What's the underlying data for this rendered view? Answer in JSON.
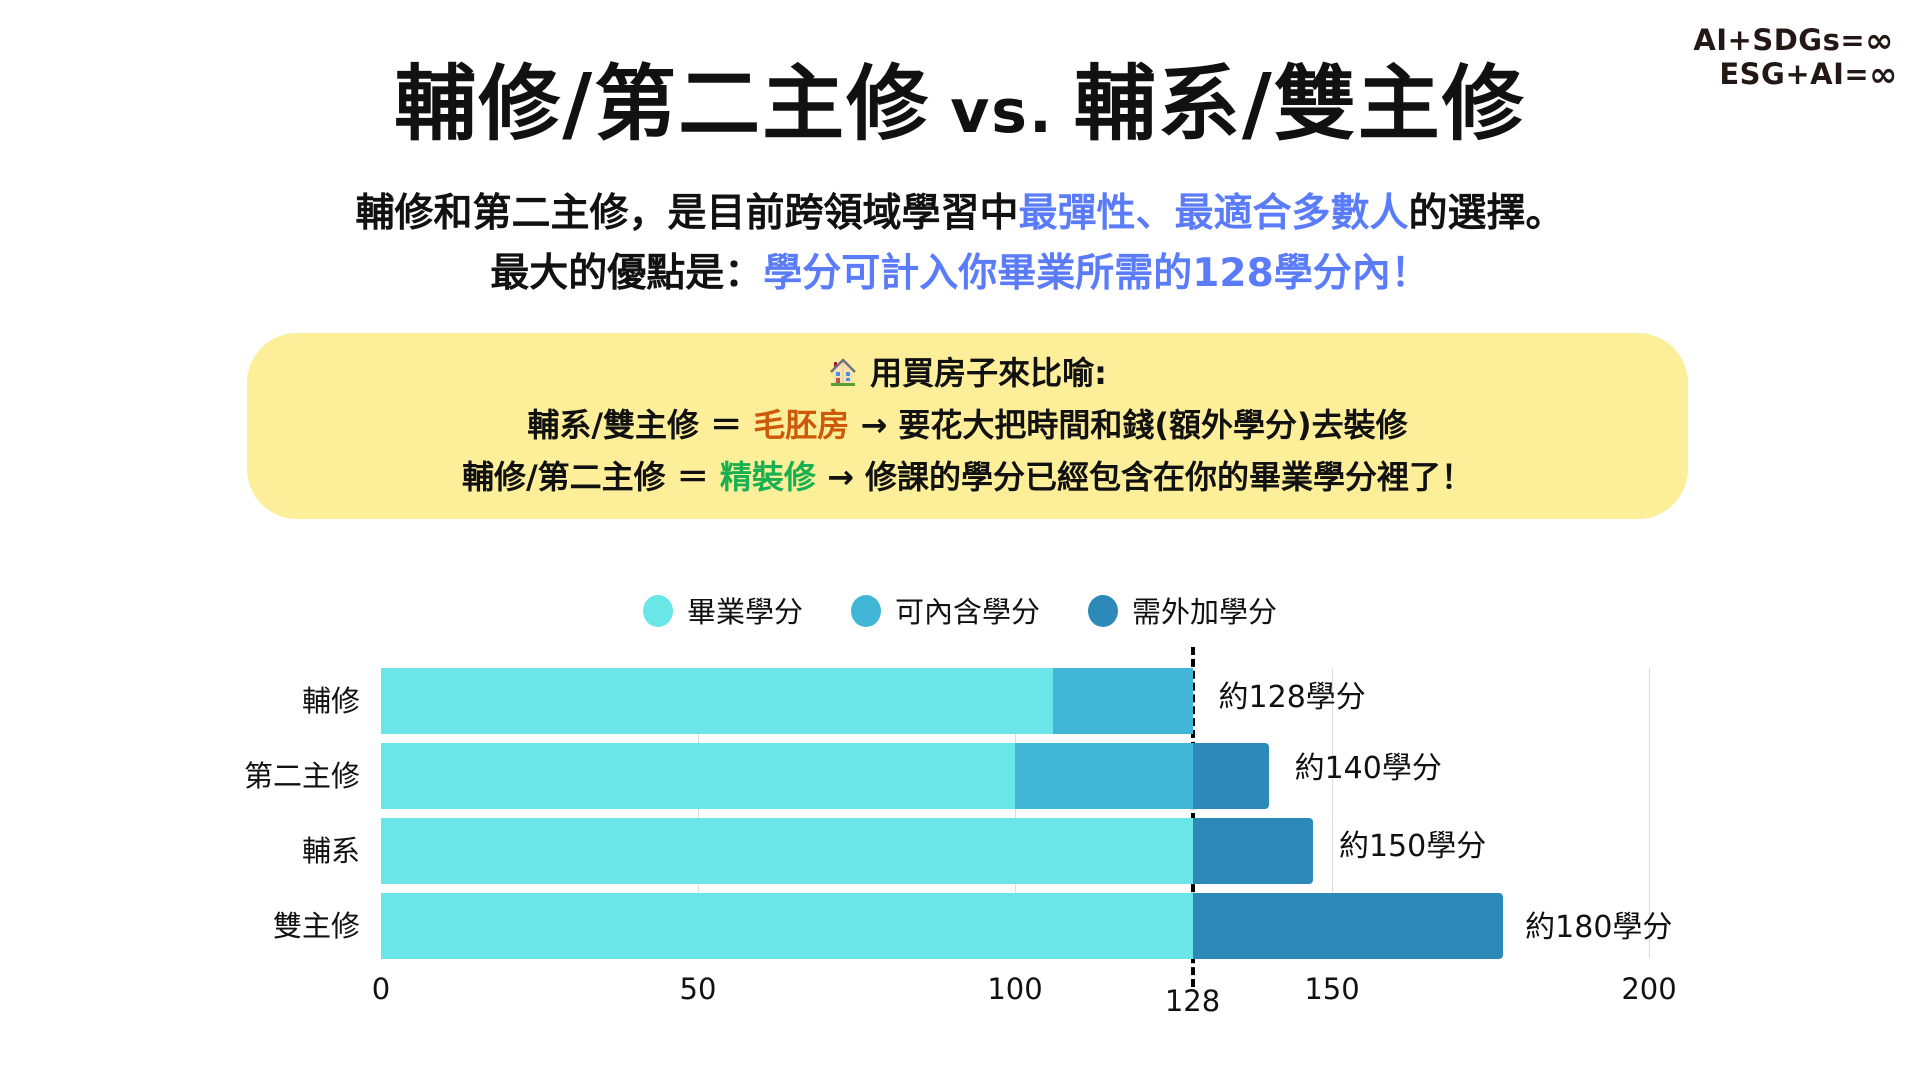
{
  "logo": {
    "line1": "AI+SDGs=",
    "line2": "ESG+AI=",
    "icon": "infinity-icon"
  },
  "title": {
    "left": "輔修/第二主修",
    "vs": "vs.",
    "right": "輔系/雙主修"
  },
  "subtitle": {
    "line1_a": "輔修和第二主修，是目前跨領域學習中",
    "line1_hl": "最彈性、最適合多數人",
    "line1_b": "的選擇。",
    "line2_a": "最大的優點是：",
    "line2_hl": "學分可計入你畢業所需的128學分內！"
  },
  "callout": {
    "icon": "house-icon",
    "heading": "用買房子來比喻:",
    "row1_a": "輔系/雙主修 ＝ ",
    "row1_hl": "毛胚房",
    "row1_b": " → 要花大把時間和錢(額外學分)去裝修",
    "row2_a": "輔修/第二主修 ＝ ",
    "row2_hl": "精裝修",
    "row2_b": " → 修課的學分已經包含在你的畢業學分裡了！",
    "bg_color": "#fdef9a",
    "orange": "#cc5a0a",
    "green": "#18b050"
  },
  "chart_data": {
    "type": "bar",
    "orientation": "horizontal",
    "stacked": true,
    "title": "",
    "xlabel": "",
    "ylabel": "",
    "xlim": [
      0,
      200
    ],
    "x_ticks": [
      0,
      50,
      100,
      150,
      200
    ],
    "reference_line": {
      "value": 128,
      "label": "128",
      "style": "dashed"
    },
    "grid": true,
    "legend_position": "top",
    "categories": [
      "輔修",
      "第二主修",
      "輔系",
      "雙主修"
    ],
    "series": [
      {
        "name": "畢業學分",
        "color": "#6ae5e8",
        "values": [
          106,
          100,
          128,
          128
        ]
      },
      {
        "name": "可內含學分",
        "color": "#41b6d6",
        "values": [
          22,
          28,
          0,
          0
        ]
      },
      {
        "name": "需外加學分",
        "color": "#2d8ab8",
        "values": [
          0,
          12,
          19,
          49
        ]
      }
    ],
    "totals": [
      128,
      140,
      147,
      177
    ],
    "annotations": [
      "約128學分",
      "約140學分",
      "約150學分",
      "約180學分"
    ]
  }
}
